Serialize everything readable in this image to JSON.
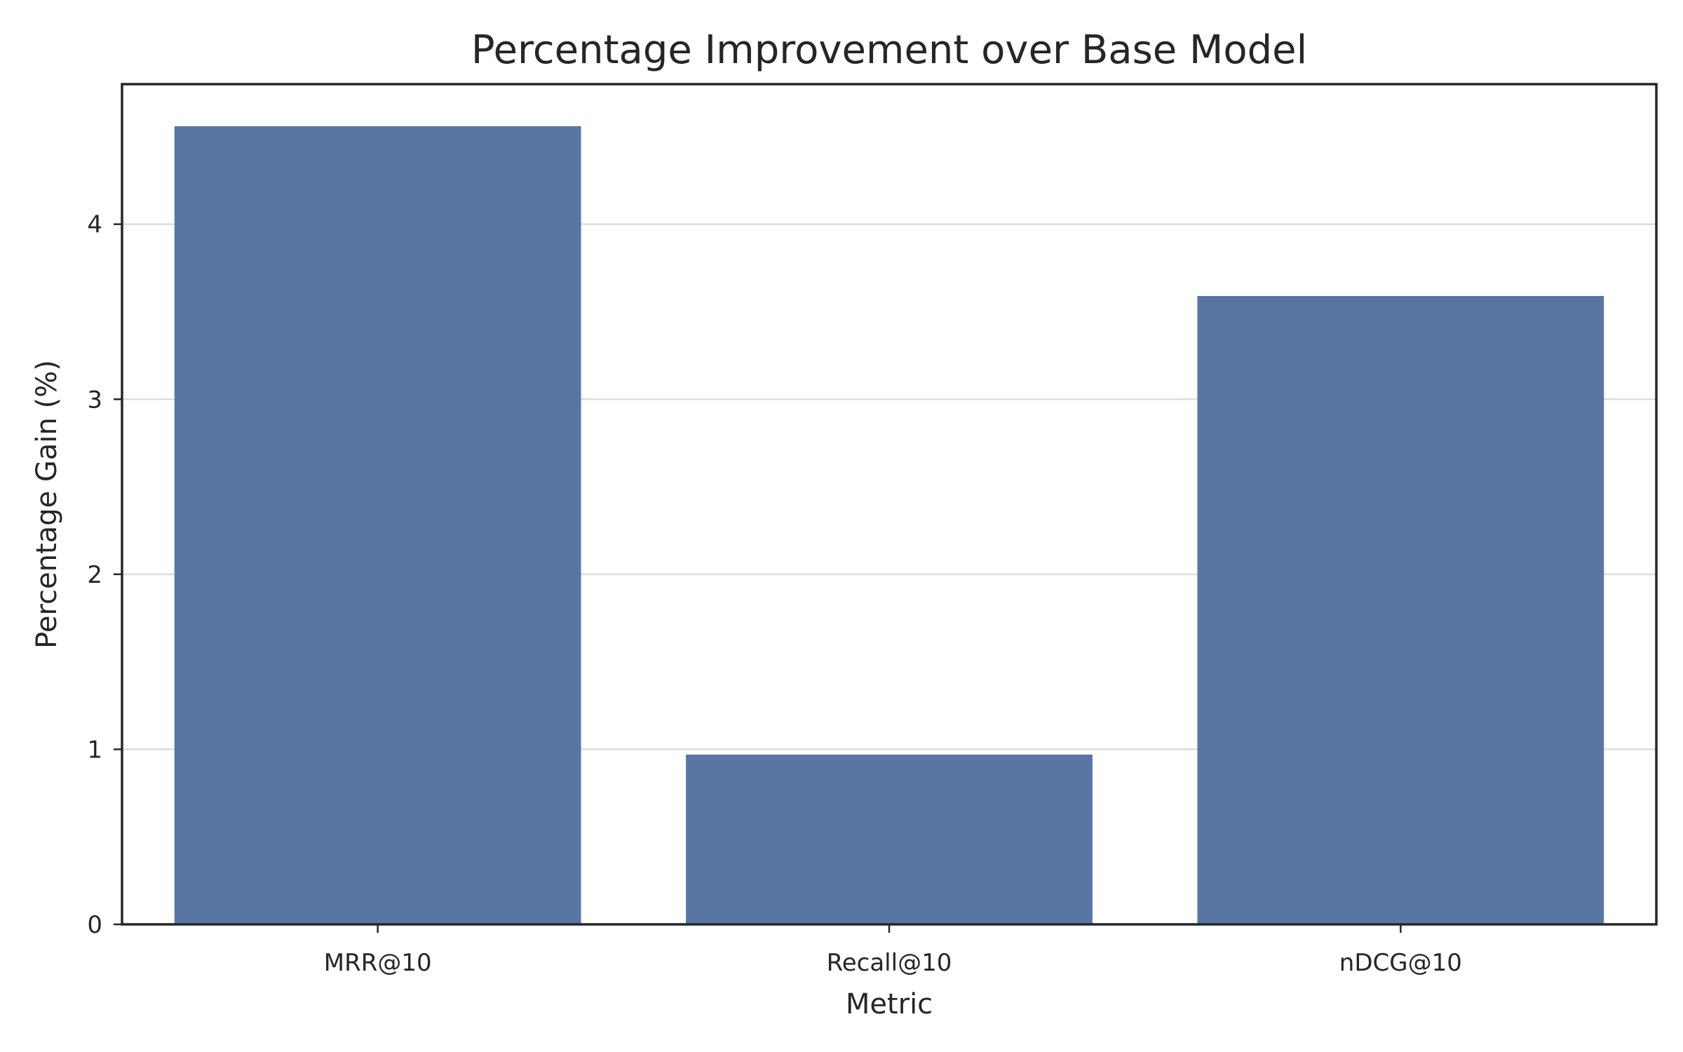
{
  "chart_data": {
    "type": "bar",
    "title": "Percentage Improvement over Base Model",
    "xlabel": "Metric",
    "ylabel": "Percentage Gain (%)",
    "categories": [
      "MRR@10",
      "Recall@10",
      "nDCG@10"
    ],
    "values": [
      4.56,
      0.97,
      3.59
    ],
    "ylim": [
      0,
      4.8
    ],
    "yticks": [
      0,
      1,
      2,
      3,
      4
    ],
    "grid": "horizontal",
    "bar_color": "#5975a4",
    "grid_color": "#dcdcdc",
    "axis_color": "#262626"
  }
}
